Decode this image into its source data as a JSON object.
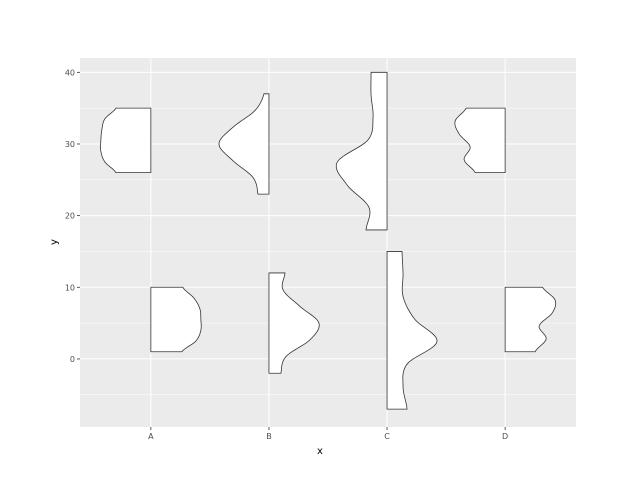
{
  "chart_data": {
    "type": "violin",
    "title": "",
    "xlabel": "x",
    "ylabel": "y",
    "categories": [
      "A",
      "B",
      "C",
      "D"
    ],
    "ylim": [
      -9.5,
      42
    ],
    "yticks": [
      0,
      10,
      20,
      30,
      40
    ],
    "ytick_labels": [
      "0",
      "10",
      "20",
      "30",
      "40"
    ],
    "grid": true,
    "colors": {
      "panel": "#ebebeb",
      "grid": "#ffffff",
      "outline": "#333333",
      "fill": "#ffffff"
    },
    "violins": [
      {
        "name": "A-upper",
        "category": "A",
        "side": "left",
        "ymin": 26,
        "ymax": 35,
        "profile": [
          0.7,
          0.92,
          1.0,
          1.0,
          0.98,
          0.92,
          0.7
        ]
      },
      {
        "name": "A-lower",
        "category": "A",
        "side": "right",
        "ymin": 1,
        "ymax": 10,
        "profile": [
          0.62,
          0.9,
          1.0,
          1.0,
          0.98,
          0.86,
          0.64
        ]
      },
      {
        "name": "B-upper",
        "category": "B",
        "side": "left",
        "ymin": 23,
        "ymax": 37,
        "profile": [
          0.22,
          0.32,
          0.72,
          1.0,
          0.72,
          0.28,
          0.1
        ]
      },
      {
        "name": "B-lower",
        "category": "B",
        "side": "right",
        "ymin": -2,
        "ymax": 12,
        "profile": [
          0.24,
          0.34,
          0.82,
          1.0,
          0.62,
          0.28,
          0.32
        ]
      },
      {
        "name": "C-upper",
        "category": "C",
        "side": "left",
        "ymin": 18,
        "ymax": 40,
        "profile": [
          0.42,
          0.36,
          0.8,
          1.0,
          0.38,
          0.28,
          0.32,
          0.32
        ]
      },
      {
        "name": "C-lower",
        "category": "C",
        "side": "right",
        "ymin": -7,
        "ymax": 15,
        "profile": [
          0.4,
          0.32,
          0.4,
          1.0,
          0.55,
          0.32,
          0.32,
          0.3
        ]
      },
      {
        "name": "D-upper",
        "category": "D",
        "side": "left",
        "ymin": 26,
        "ymax": 35,
        "profile": [
          0.6,
          0.82,
          0.7,
          0.92,
          1.0,
          0.78
        ]
      },
      {
        "name": "D-lower",
        "category": "D",
        "side": "right",
        "ymin": 1,
        "ymax": 10,
        "profile": [
          0.6,
          0.82,
          0.68,
          0.94,
          1.0,
          0.75
        ]
      }
    ]
  }
}
